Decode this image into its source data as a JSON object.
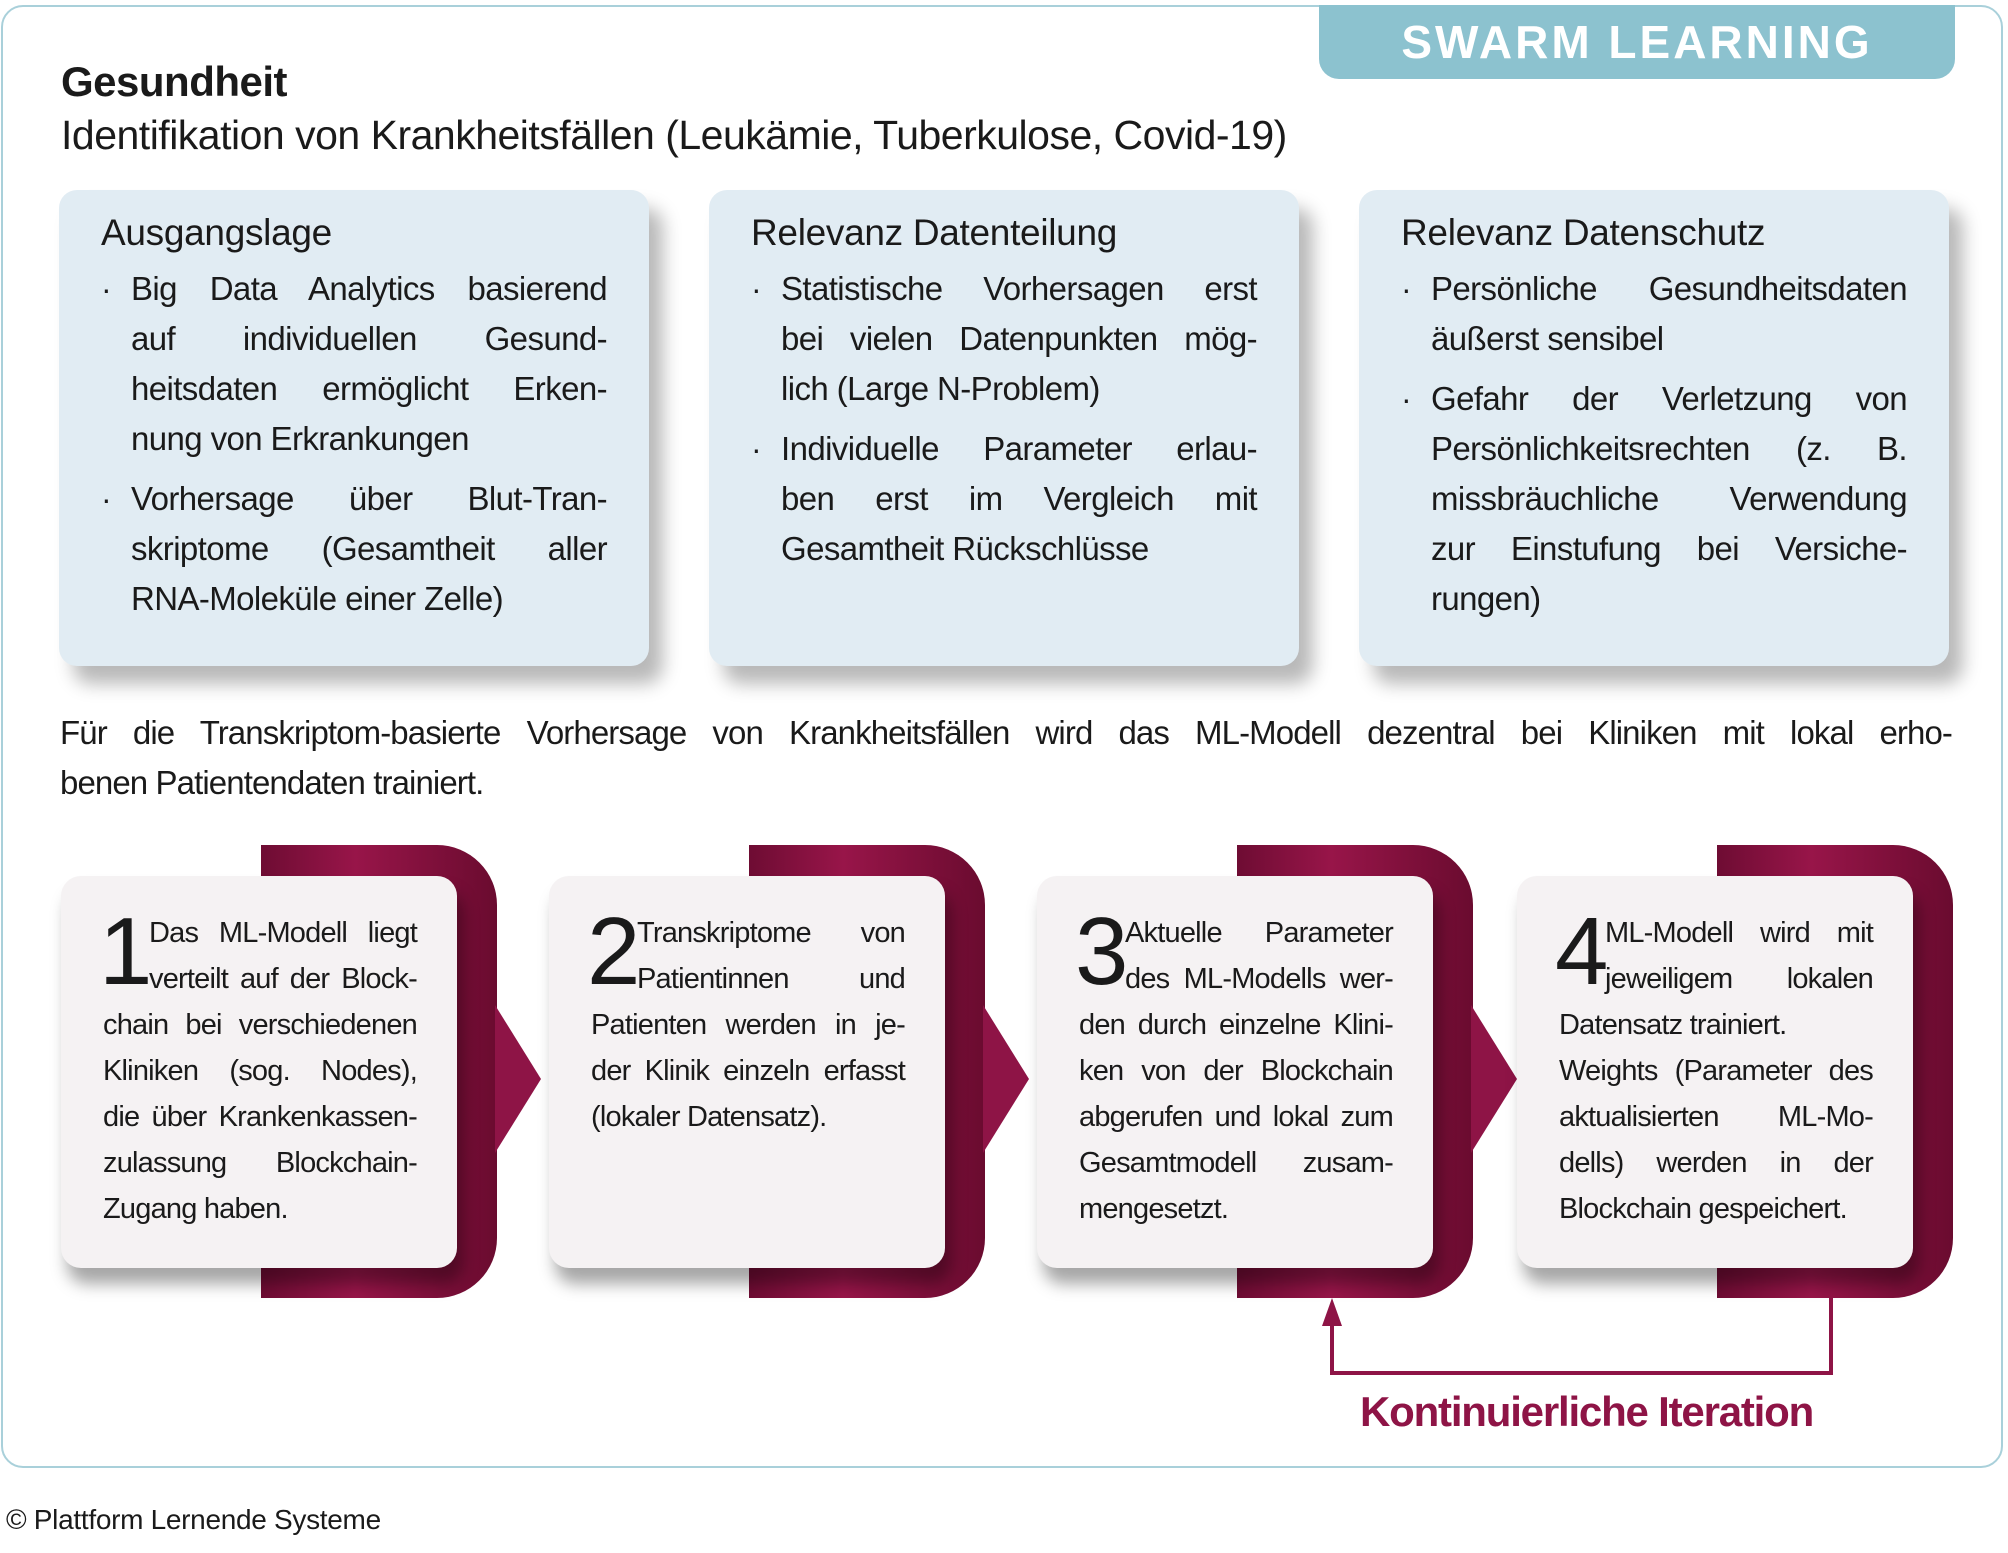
{
  "tab_label": "SWARM LEARNING",
  "title": "Gesundheit",
  "subtitle": "Identifikation von Krankheitsfällen (Leukämie, Tuberkulose, Covid-19)",
  "boxes": [
    {
      "heading": "Ausgangslage",
      "items": [
        [
          "Big Data Analytics basierend",
          "auf individuellen Gesund-",
          "heitsdaten ermöglicht Erken-",
          "nung von Erkrankungen"
        ],
        [
          "Vorhersage über Blut-Tran-",
          "skriptome (Gesamtheit aller",
          "RNA-Moleküle einer Zelle)"
        ]
      ]
    },
    {
      "heading": "Relevanz Datenteilung",
      "items": [
        [
          "Statistische Vorhersagen erst",
          "bei vielen Datenpunkten mög-",
          "lich (Large N-Problem)"
        ],
        [
          "Individuelle Parameter erlau-",
          "ben erst im Vergleich mit",
          "Gesamtheit Rückschlüsse"
        ]
      ]
    },
    {
      "heading": "Relevanz Datenschutz",
      "items": [
        [
          "Persönliche Gesundheitsdaten",
          "äußerst sensibel"
        ],
        [
          "Gefahr der Verletzung von",
          "Persönlichkeitsrechten (z. B.",
          "missbräuchliche Verwendung",
          "zur Einstufung bei Versiche-",
          "rungen)"
        ]
      ]
    }
  ],
  "bullet_char": "·",
  "paragraph": [
    "Für die Transkriptom-basierte Vorhersage von Krankheitsfällen wird das ML-Modell dezentral bei Kliniken mit lokal erho-",
    "benen Patientendaten trainiert."
  ],
  "steps": [
    {
      "number": "1",
      "lines": [
        "Das ML-Modell liegt",
        "verteilt auf der Block-",
        "chain bei verschiedenen",
        "Kliniken (sog. Nodes),",
        "die über Krankenkassen-",
        "zulassung Blockchain-",
        "Zugang haben."
      ]
    },
    {
      "number": "2",
      "lines": [
        "Transkriptome von",
        "Patientinnen und",
        "Patienten werden in je-",
        "der Klinik einzeln erfasst",
        "(lokaler Datensatz)."
      ]
    },
    {
      "number": "3",
      "lines": [
        "Aktuelle Parameter",
        "des ML-Modells wer-",
        "den durch einzelne Klini-",
        "ken von der Blockchain",
        "abgerufen und lokal zum",
        "Gesamtmodell zusam-",
        "mengesetzt."
      ]
    },
    {
      "number": "4",
      "lines": [
        "ML-Modell wird mit",
        "jeweiligem lokalen",
        "Datensatz trainiert.",
        "Weights (Parameter des",
        "aktualisierten ML-Mo-",
        "dells) werden in der",
        "Blockchain gespeichert."
      ]
    }
  ],
  "iteration_label": "Kontinuierliche Iteration",
  "footer": "© Plattform Lernende Systeme",
  "colors": {
    "accent": "#8e1446",
    "tab": "#8cc2cf",
    "box": "#e1ecf3",
    "card": "#f5f2f3",
    "frame": "#a9d0da"
  }
}
